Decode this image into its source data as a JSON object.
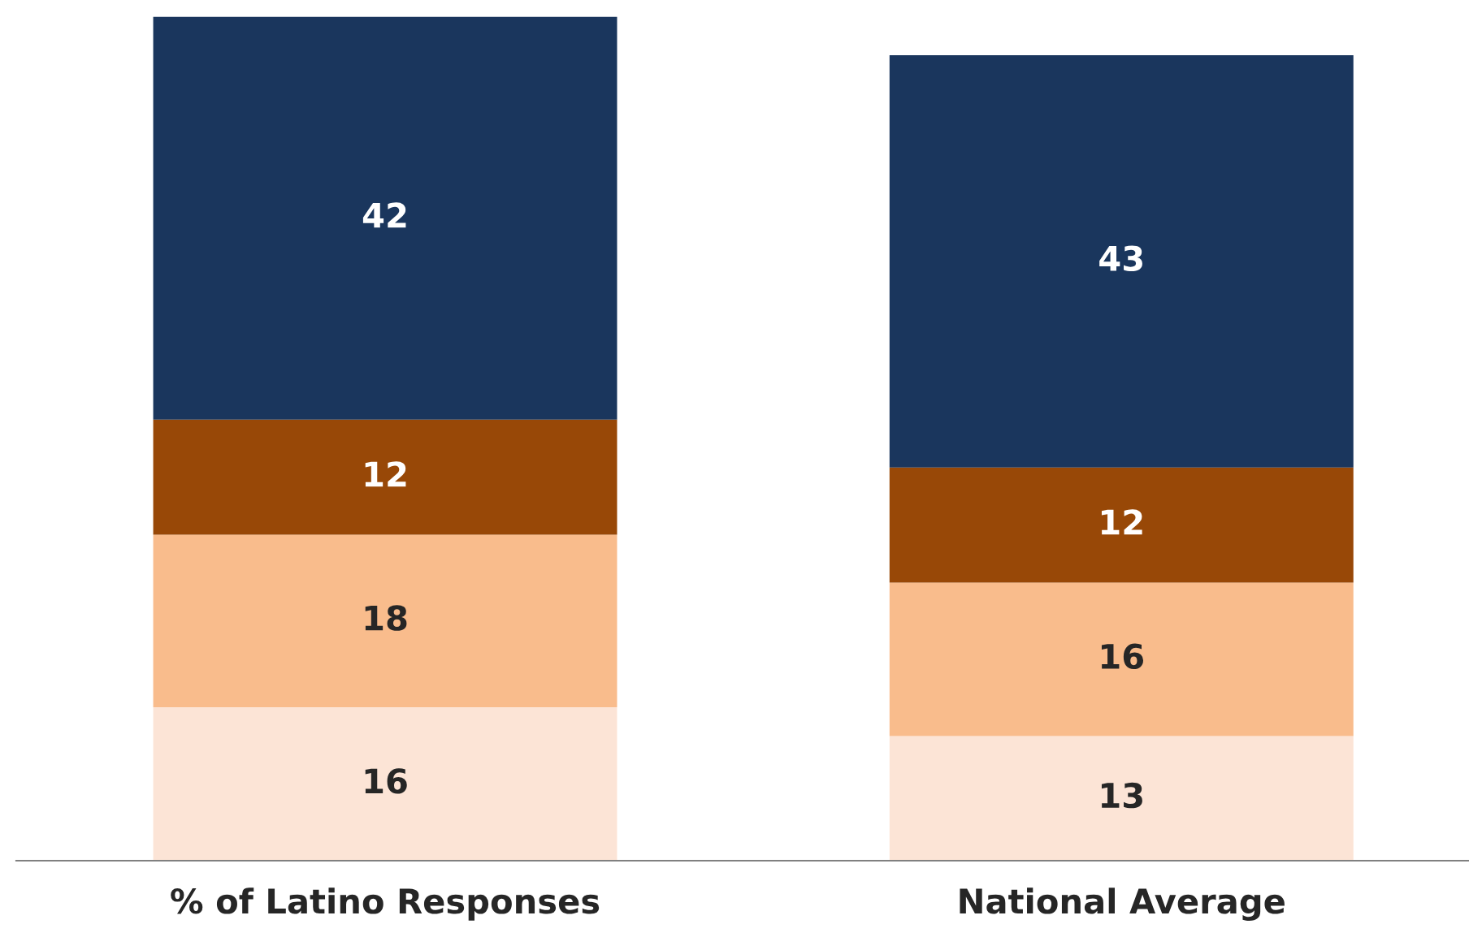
{
  "chart_data": {
    "type": "bar",
    "stacked": true,
    "data_labels": true,
    "categories": [
      "% of Latino Responses",
      "National Average"
    ],
    "series": [
      {
        "color": "#fce4d6",
        "values": [
          16,
          13
        ]
      },
      {
        "color": "#f9bc8c",
        "values": [
          18,
          16
        ]
      },
      {
        "color": "#984807",
        "values": [
          12,
          12
        ]
      },
      {
        "color": "#1a365d",
        "values": [
          42,
          43
        ]
      }
    ],
    "grid": false,
    "legend": false
  }
}
